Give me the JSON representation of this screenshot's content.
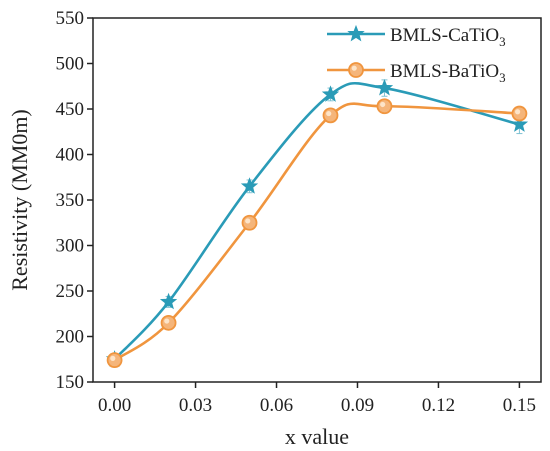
{
  "chart_data": {
    "type": "line",
    "xlabel": "x value",
    "ylabel": "Resistivity (MM0m)",
    "xlim": [
      -0.008,
      0.158
    ],
    "ylim": [
      150,
      550
    ],
    "xticks": [
      "0.00",
      "0.03",
      "0.06",
      "0.09",
      "0.12",
      "0.15"
    ],
    "xtick_values": [
      0.0,
      0.03,
      0.06,
      0.09,
      0.12,
      0.15
    ],
    "yticks": [
      "150",
      "200",
      "250",
      "300",
      "350",
      "400",
      "450",
      "500",
      "550"
    ],
    "ytick_values": [
      150,
      200,
      250,
      300,
      350,
      400,
      450,
      500,
      550
    ],
    "grid": false,
    "smooth": true,
    "legend_position": "top-right",
    "series": [
      {
        "name": "BMLS-CaTiO",
        "name_sub": "3",
        "marker": "star",
        "color": "#2a9bb7",
        "x": [
          0.0,
          0.02,
          0.05,
          0.08,
          0.1,
          0.15
        ],
        "y": [
          175,
          238,
          365,
          466,
          473,
          433
        ],
        "err": [
          6,
          6,
          7,
          7,
          9,
          10
        ]
      },
      {
        "name": "BMLS-BaTiO",
        "name_sub": "3",
        "marker": "circle",
        "color": "#f0953e",
        "x": [
          0.0,
          0.02,
          0.05,
          0.08,
          0.1,
          0.15
        ],
        "y": [
          174,
          215,
          325,
          443,
          453,
          445
        ],
        "err": [
          5,
          5,
          6,
          6,
          6,
          6
        ]
      }
    ]
  }
}
